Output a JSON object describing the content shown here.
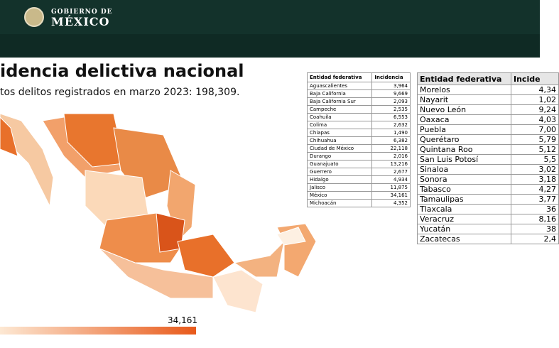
{
  "header": {
    "brand_top": "GOBIERNO DE",
    "brand_main": "MÉXICO"
  },
  "slide": {
    "title": "idencia delictiva nacional",
    "subtitle": "tos delitos registrados en marzo 2023: 198,309.",
    "legend_max": "34,161"
  },
  "table_left": {
    "columns": [
      "Entidad federativa",
      "Incidencia"
    ],
    "rows": [
      [
        "Aguascalientes",
        "3,964"
      ],
      [
        "Baja California",
        "9,669"
      ],
      [
        "Baja California Sur",
        "2,093"
      ],
      [
        "Campeche",
        "2,535"
      ],
      [
        "Coahuila",
        "6,553"
      ],
      [
        "Colima",
        "2,632"
      ],
      [
        "Chiapas",
        "1,490"
      ],
      [
        "Chihuahua",
        "6,382"
      ],
      [
        "Ciudad de México",
        "22,118"
      ],
      [
        "Durango",
        "2,016"
      ],
      [
        "Guanajuato",
        "13,216"
      ],
      [
        "Guerrero",
        "2,677"
      ],
      [
        "Hidalgo",
        "4,934"
      ],
      [
        "Jalisco",
        "11,875"
      ],
      [
        "México",
        "34,161"
      ],
      [
        "Michoacán",
        "4,352"
      ]
    ]
  },
  "table_right": {
    "columns": [
      "Entidad federativa",
      "Incide"
    ],
    "rows": [
      [
        "Morelos",
        "4,34"
      ],
      [
        "Nayarit",
        "1,02"
      ],
      [
        "Nuevo León",
        "9,24"
      ],
      [
        "Oaxaca",
        "4,03"
      ],
      [
        "Puebla",
        "7,00"
      ],
      [
        "Querétaro",
        "5,79"
      ],
      [
        "Quintana Roo",
        "5,12"
      ],
      [
        "San Luis Potosí",
        "5,5"
      ],
      [
        "Sinaloa",
        "3,02"
      ],
      [
        "Sonora",
        "3,18"
      ],
      [
        "Tabasco",
        "4,27"
      ],
      [
        "Tamaulipas",
        "3,77"
      ],
      [
        "Tlaxcala",
        "36"
      ],
      [
        "Veracruz",
        "8,16"
      ],
      [
        "Yucatán",
        "38"
      ],
      [
        "Zacatecas",
        "2,4"
      ]
    ]
  }
}
